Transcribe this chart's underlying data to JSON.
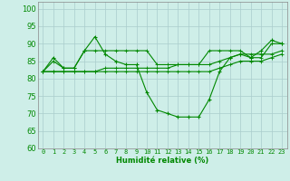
{
  "title": "",
  "xlabel": "Humidité relative (%)",
  "ylabel": "",
  "xlim": [
    -0.5,
    23.5
  ],
  "ylim": [
    60,
    102
  ],
  "yticks": [
    60,
    65,
    70,
    75,
    80,
    85,
    90,
    95,
    100
  ],
  "xticks": [
    0,
    1,
    2,
    3,
    4,
    5,
    6,
    7,
    8,
    9,
    10,
    11,
    12,
    13,
    14,
    15,
    16,
    17,
    18,
    19,
    20,
    21,
    22,
    23
  ],
  "background_color": "#ceeee8",
  "grid_color": "#aacccc",
  "line_color": "#008800",
  "series": [
    [
      82,
      86,
      83,
      83,
      88,
      92,
      87,
      85,
      84,
      84,
      76,
      71,
      70,
      69,
      69,
      69,
      74,
      82,
      86,
      87,
      86,
      88,
      91,
      90
    ],
    [
      82,
      85,
      83,
      83,
      88,
      88,
      88,
      88,
      88,
      88,
      88,
      84,
      84,
      84,
      84,
      84,
      88,
      88,
      88,
      88,
      86,
      86,
      90,
      90
    ],
    [
      82,
      82,
      82,
      82,
      82,
      82,
      83,
      83,
      83,
      83,
      83,
      83,
      83,
      84,
      84,
      84,
      84,
      85,
      86,
      87,
      87,
      87,
      87,
      88
    ],
    [
      82,
      82,
      82,
      82,
      82,
      82,
      82,
      82,
      82,
      82,
      82,
      82,
      82,
      82,
      82,
      82,
      82,
      83,
      84,
      85,
      85,
      85,
      86,
      87
    ]
  ],
  "markers": [
    true,
    true,
    true,
    true
  ]
}
